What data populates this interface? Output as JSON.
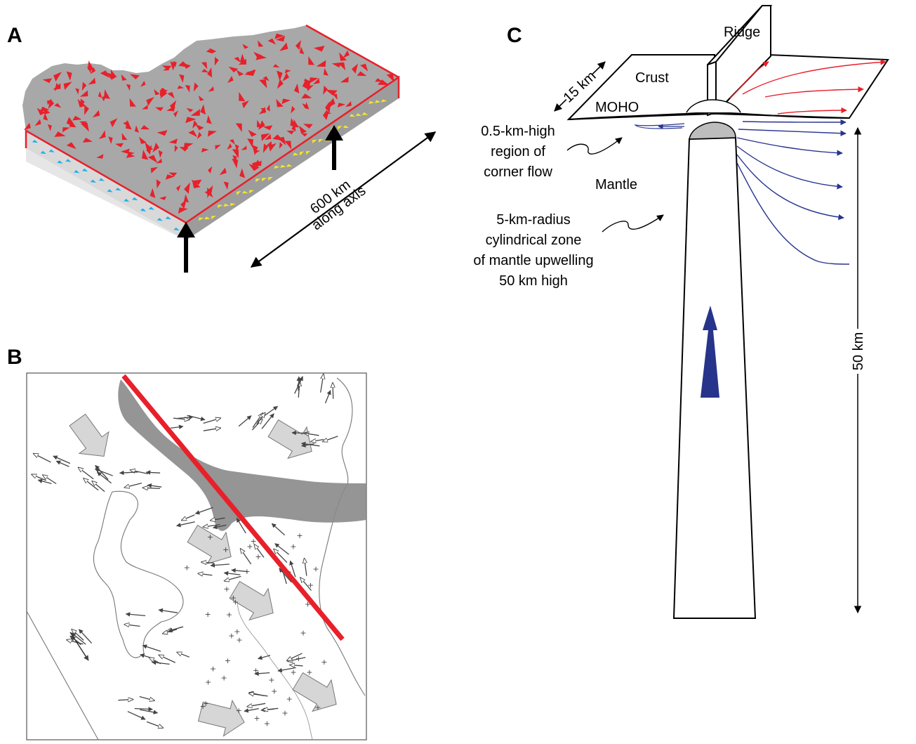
{
  "panels": {
    "a": {
      "letter": "A",
      "distance_label_1": "600 km",
      "distance_label_2": "along axis",
      "colors": {
        "top_surface": "#a8a8a9",
        "top_markers": "#e8202a",
        "left_face": "#d9d9da",
        "left_markers": "#1fb0e6",
        "front_face": "#9c9c9d",
        "front_markers": "#f4e62a",
        "edges": "#e8202a"
      }
    },
    "b": {
      "letter": "B",
      "colors": {
        "lineament": "#e8202a",
        "shaded_band": "#8a8a8a",
        "big_arrows": "#d6d6d6",
        "vectors": "#444444"
      }
    },
    "c": {
      "letter": "C",
      "ridge": "Ridge",
      "crust": "Crust",
      "moho": "MOHO",
      "crust_thickness": "15 km",
      "corner_flow_1": "0.5-km-high",
      "corner_flow_2": "region of",
      "corner_flow_3": "corner flow",
      "mantle": "Mantle",
      "upwelling_1": "5-km-radius",
      "upwelling_2": "cylindrical zone",
      "upwelling_3": "of mantle upwelling",
      "upwelling_4": "50 km high",
      "height_label": "50 km",
      "colors": {
        "crust_flow": "#e8202a",
        "mantle_flow": "#28348f",
        "upwelling_arrow": "#27348b",
        "cap": "#bdbdbd"
      }
    }
  }
}
